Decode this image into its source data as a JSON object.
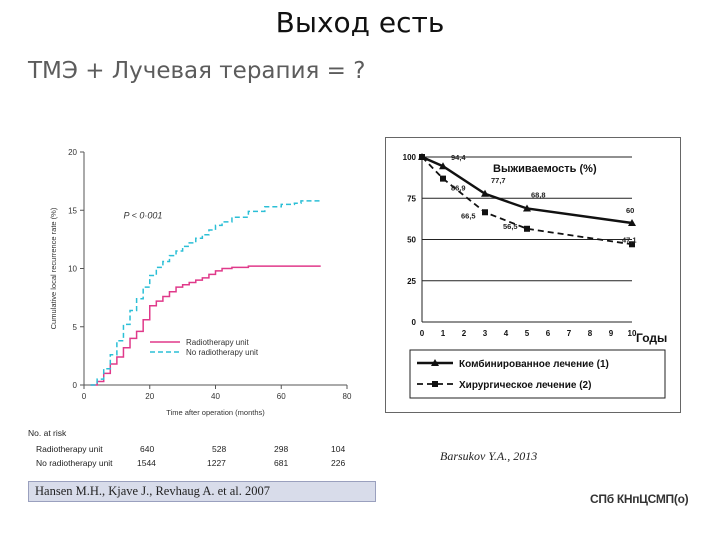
{
  "slide": {
    "title": "Выход есть",
    "subtitle": "ТМЭ + Лучевая терапия = ?",
    "ref_left": "Hansen M.H., Kjave J., Revhaug A. et al. 2007",
    "ref_right": "Barsukov Y.A., 2013",
    "logo_text": "СПб КНпЦСМП(о)"
  },
  "risk_table": {
    "header": "No. at risk",
    "rows": [
      {
        "label": "Radiotherapy unit",
        "values": [
          "640",
          "528",
          "298",
          "104"
        ]
      },
      {
        "label": "No radiotherapy unit",
        "values": [
          "1544",
          "1227",
          "681",
          "226"
        ]
      }
    ]
  },
  "chart_data": [
    {
      "type": "line",
      "title": "",
      "xlabel": "Time after operation (months)",
      "ylabel": "Cumulative local recurrence rate (%)",
      "xlim": [
        0,
        80
      ],
      "ylim": [
        0,
        20
      ],
      "x_ticks": [
        "0",
        "20",
        "40",
        "60",
        "80"
      ],
      "y_ticks": [
        "0",
        "5",
        "10",
        "15",
        "20"
      ],
      "annotation": "P < 0·001",
      "legend_position": "bottom-right",
      "series": [
        {
          "name": "Radiotherapy unit",
          "color": "#e0398a",
          "style": "solid",
          "x": [
            2,
            4,
            6,
            8,
            10,
            12,
            14,
            16,
            18,
            20,
            22,
            24,
            26,
            28,
            30,
            32,
            34,
            36,
            38,
            40,
            42,
            45,
            50,
            55,
            60,
            65,
            70,
            72
          ],
          "y": [
            0,
            0.3,
            1.0,
            1.8,
            2.4,
            3.2,
            4.0,
            4.6,
            5.6,
            6.8,
            7.2,
            7.6,
            8.0,
            8.4,
            8.6,
            8.8,
            9.0,
            9.2,
            9.5,
            9.8,
            10.0,
            10.1,
            10.2,
            10.2,
            10.2,
            10.2,
            10.2,
            10.2
          ]
        },
        {
          "name": "No radiotherapy unit",
          "color": "#2bbfd6",
          "style": "dashed",
          "x": [
            2,
            4,
            6,
            8,
            10,
            12,
            14,
            16,
            18,
            20,
            22,
            24,
            26,
            28,
            30,
            32,
            34,
            36,
            38,
            40,
            42,
            45,
            50,
            55,
            60,
            64,
            66,
            70,
            72
          ],
          "y": [
            0,
            0.5,
            1.4,
            2.6,
            3.8,
            5.2,
            6.4,
            7.4,
            8.4,
            9.4,
            10.1,
            10.6,
            11.1,
            11.5,
            11.9,
            12.2,
            12.6,
            12.9,
            13.3,
            13.7,
            14.0,
            14.4,
            14.9,
            15.3,
            15.5,
            15.6,
            15.8,
            15.8,
            15.8
          ]
        }
      ]
    },
    {
      "type": "line",
      "title": "Выживаемость (%)",
      "xlabel": "Годы",
      "ylabel": "",
      "xlim": [
        0,
        10
      ],
      "ylim": [
        0,
        100
      ],
      "x_ticks": [
        "0",
        "1",
        "2",
        "3",
        "4",
        "5",
        "6",
        "7",
        "8",
        "9",
        "10"
      ],
      "y_ticks": [
        "0",
        "25",
        "50",
        "75",
        "100"
      ],
      "grid": true,
      "legend_position": "bottom",
      "series": [
        {
          "name": "Комбинированное лечение (1)",
          "color": "#111111",
          "style": "solid",
          "marker": "triangle",
          "x": [
            0,
            1,
            3,
            5,
            10
          ],
          "y": [
            100,
            94.4,
            77.7,
            68.8,
            60
          ],
          "labels": [
            "",
            "94,4",
            "77,7",
            "68,8",
            "60"
          ]
        },
        {
          "name": "Хирургическое лечение (2)",
          "color": "#111111",
          "style": "dashed",
          "marker": "square",
          "x": [
            0,
            1,
            3,
            5,
            10
          ],
          "y": [
            100,
            86.9,
            66.5,
            56.5,
            47.1
          ],
          "labels": [
            "",
            "86,9",
            "66,5",
            "56,5",
            "47,1"
          ]
        }
      ]
    }
  ]
}
